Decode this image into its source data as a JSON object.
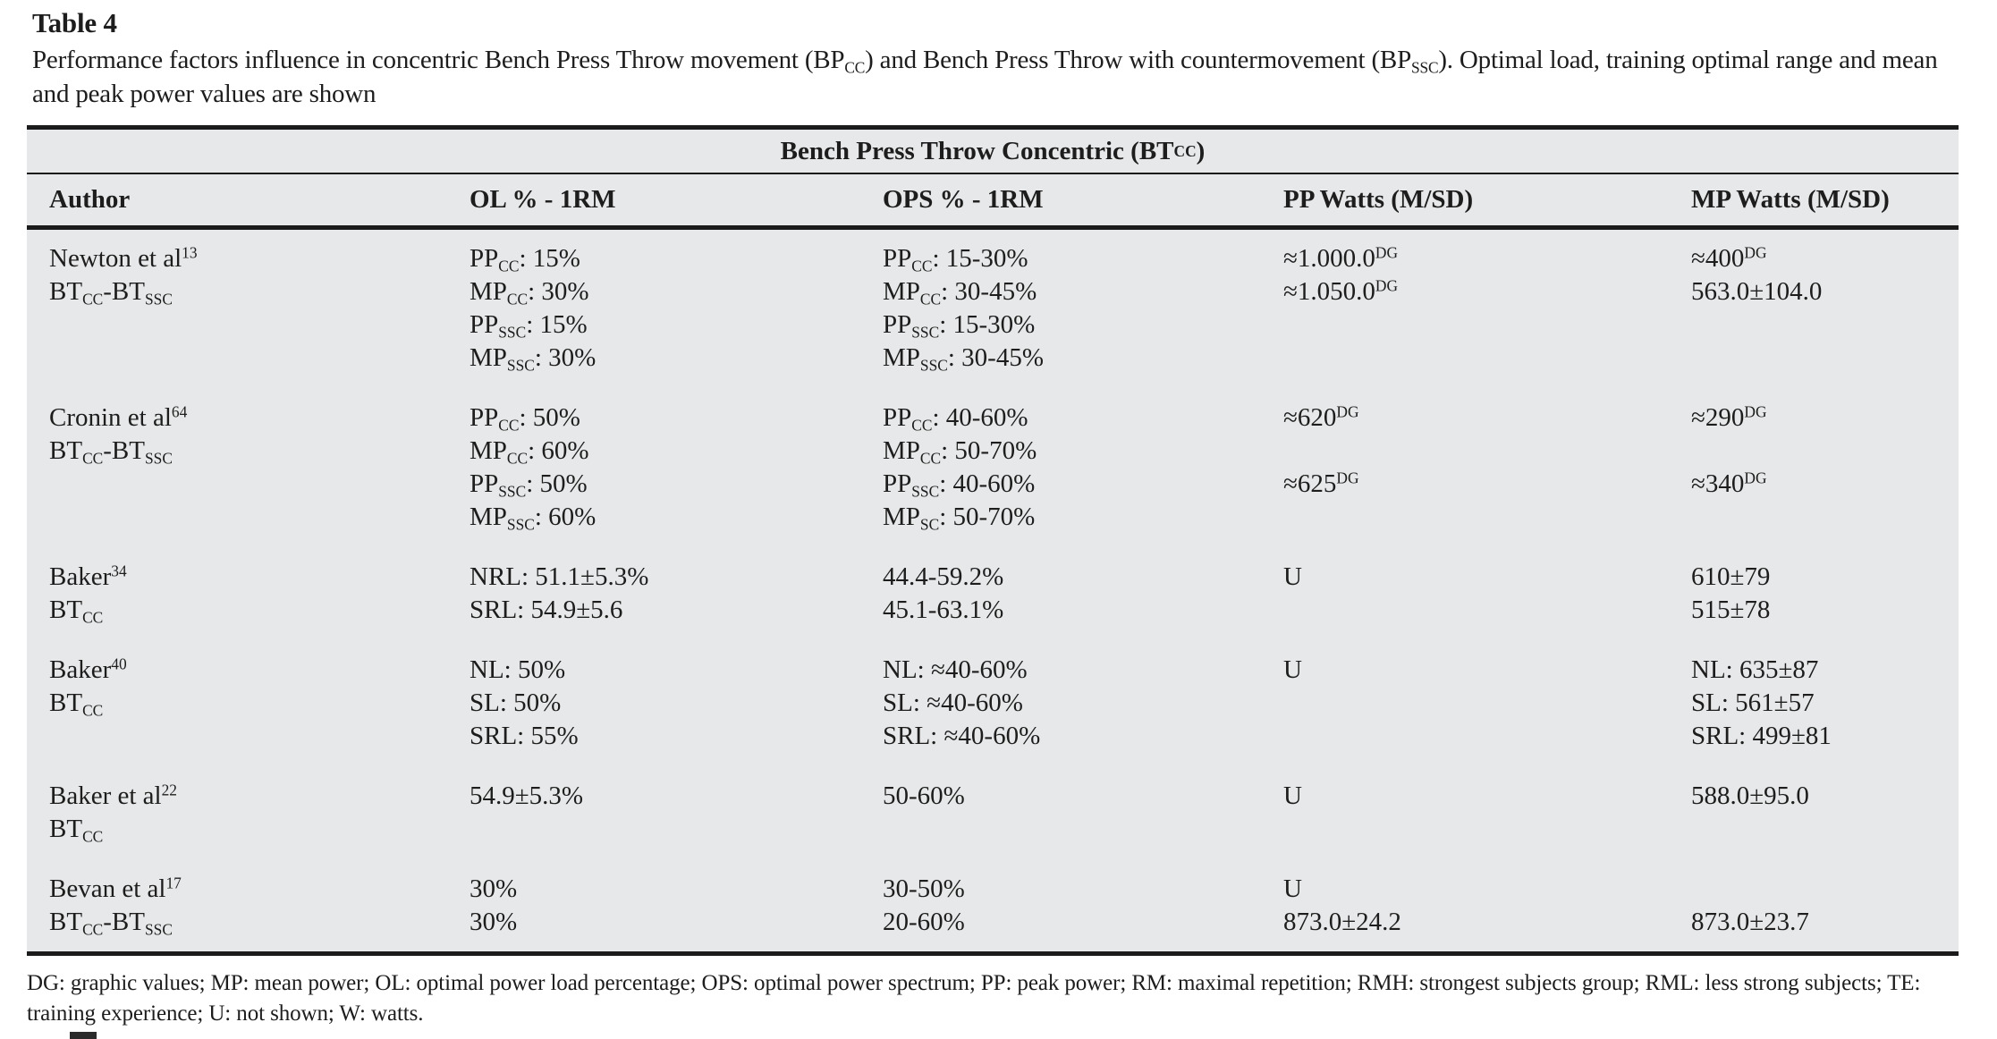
{
  "header": {
    "label": "Table 4",
    "caption": "Performance factors influence in concentric Bench Press Throw movement (BP~CC~) and Bench Press Throw with countermovement (BP~SSC~). Optimal load, training optimal range and mean and peak power values are shown"
  },
  "table": {
    "span_header": "Bench Press Throw Concentric (BT~CC~)",
    "columns": [
      "Author",
      "OL % - 1RM",
      "OPS % - 1RM",
      "PP Watts (M/SD)",
      "MP Watts (M/SD)"
    ],
    "rows": [
      {
        "author": [
          "Newton et al^13^",
          "BT~CC~-BT~SSC~"
        ],
        "ol": [
          "PP~CC~: 15%",
          "MP~CC~: 30%",
          "PP~SSC~: 15%",
          "MP~SSC~: 30%"
        ],
        "ops": [
          "PP~CC~: 15-30%",
          "MP~CC~: 30-45%",
          "PP~SSC~: 15-30%",
          "MP~SSC~: 30-45%"
        ],
        "pp": [
          "≈1.000.0^DG^",
          "≈1.050.0^DG^"
        ],
        "mp": [
          "≈400^DG^",
          "563.0±104.0"
        ]
      },
      {
        "author": [
          "Cronin et al^64^",
          "BT~CC~-BT~SSC~"
        ],
        "ol": [
          "PP~CC~: 50%",
          "MP~CC~: 60%",
          "PP~SSC~: 50%",
          "MP~SSC~: 60%"
        ],
        "ops": [
          "PP~CC~: 40-60%",
          "MP~CC~: 50-70%",
          "PP~SSC~: 40-60%",
          "MP~SC~: 50-70%"
        ],
        "pp": [
          "≈620^DG^",
          "",
          "≈625^DG^"
        ],
        "mp": [
          "≈290^DG^",
          "",
          "≈340^DG^"
        ]
      },
      {
        "author": [
          "Baker^34^",
          "BT~CC~"
        ],
        "ol": [
          "NRL: 51.1±5.3%",
          "SRL: 54.9±5.6"
        ],
        "ops": [
          "44.4-59.2%",
          "45.1-63.1%"
        ],
        "pp": [
          "U"
        ],
        "mp": [
          "610±79",
          "515±78"
        ]
      },
      {
        "author": [
          "Baker^40^",
          "BT~CC~"
        ],
        "ol": [
          "NL: 50%",
          "SL: 50%",
          "SRL: 55%"
        ],
        "ops": [
          "NL: ≈40-60%",
          "SL: ≈40-60%",
          "SRL: ≈40-60%"
        ],
        "pp": [
          "U"
        ],
        "mp": [
          "NL: 635±87",
          "SL: 561±57",
          "SRL: 499±81"
        ]
      },
      {
        "author": [
          "Baker et al^22^",
          "BT~CC~"
        ],
        "ol": [
          "54.9±5.3%"
        ],
        "ops": [
          "50-60%"
        ],
        "pp": [
          "U"
        ],
        "mp": [
          "588.0±95.0"
        ]
      },
      {
        "author": [
          "Bevan et al^17^",
          "BT~CC~-BT~SSC~"
        ],
        "ol": [
          "30%",
          "30%"
        ],
        "ops": [
          "30-50%",
          "20-60%"
        ],
        "pp": [
          "U",
          "873.0±24.2"
        ],
        "mp": [
          "",
          "873.0±23.7"
        ]
      }
    ]
  },
  "footnote": {
    "text": "DG: graphic values; MP: mean power; OL: optimal power load percentage; OPS: optimal power spectrum; PP: peak power; RM: maximal repetition; RMH: strongest subjects group; RML: less strong subjects; TE: training experience; U: not shown; W: watts."
  },
  "colors": {
    "table_bg": "#e7e8e9",
    "rule": "#1b1b1b",
    "text": "#1d1d1d",
    "page_bg": "#ffffff"
  }
}
